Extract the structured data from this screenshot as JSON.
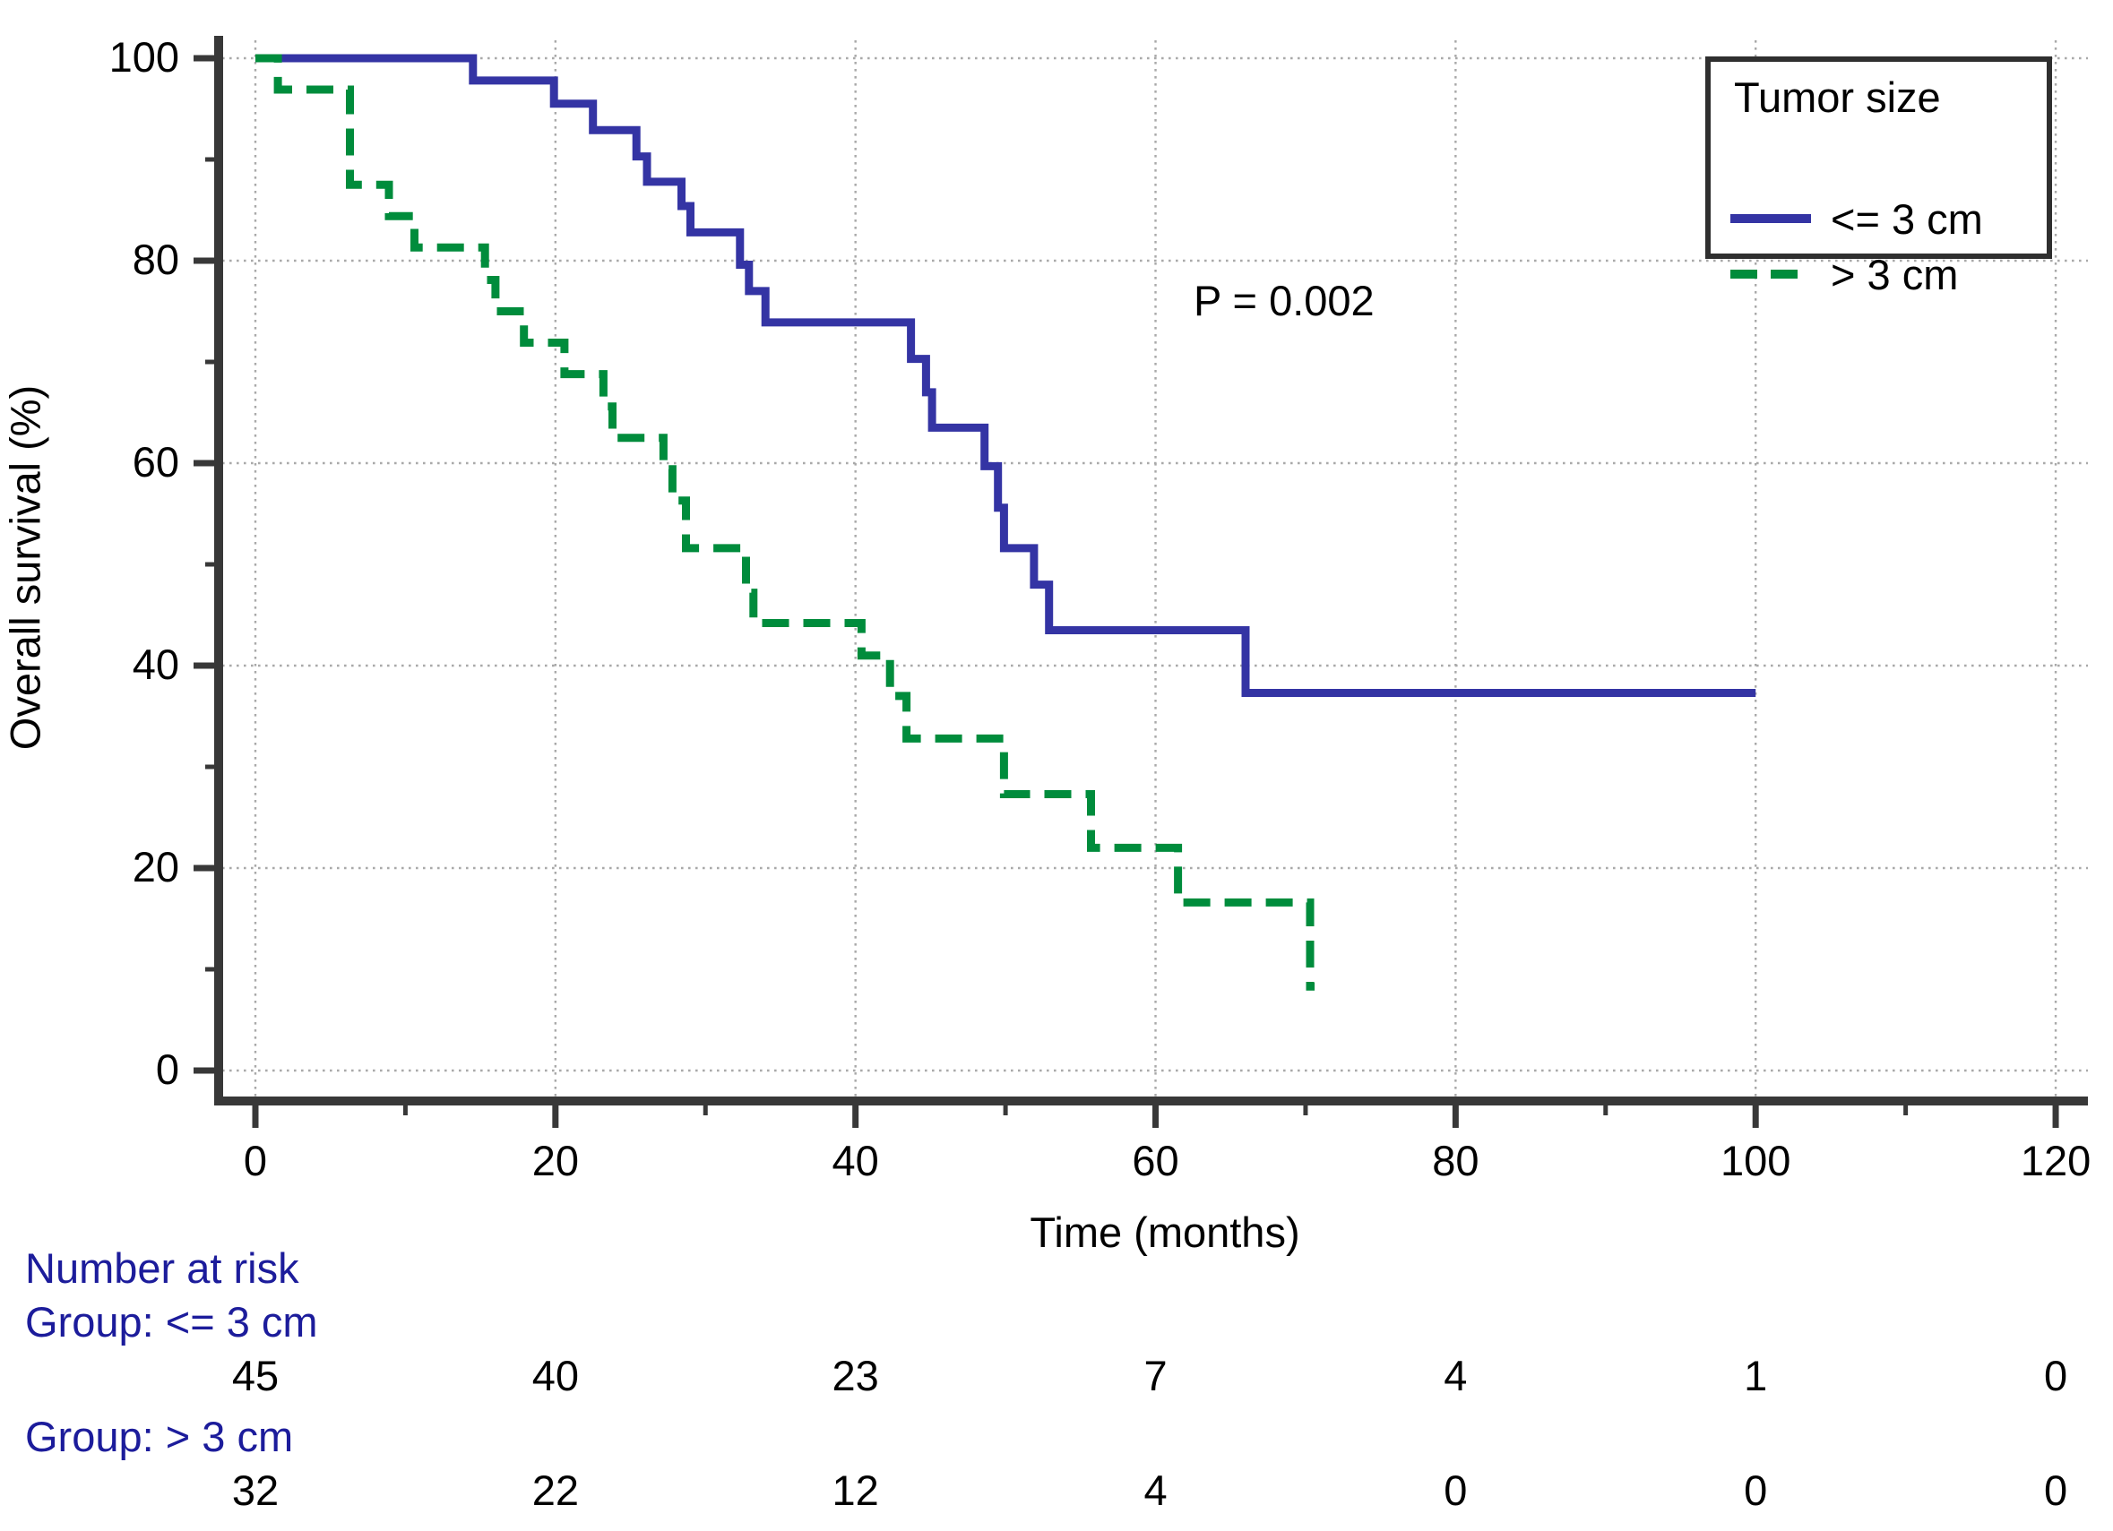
{
  "chart_data": {
    "type": "line",
    "subtype": "kaplan-meier-step",
    "title": "",
    "xlabel": "Time (months)",
    "ylabel": "Overall survival (%)",
    "xlim": [
      0,
      120
    ],
    "ylim": [
      0,
      100
    ],
    "x_ticks": [
      0,
      20,
      40,
      60,
      80,
      100,
      120
    ],
    "y_ticks": [
      0,
      20,
      40,
      60,
      80,
      100
    ],
    "minor_x_ticks": [
      10,
      30,
      50,
      70,
      90,
      110
    ],
    "minor_y_ticks": [
      10,
      30,
      50,
      70,
      90
    ],
    "grid": "dotted",
    "grid_color": "#a9a9a9",
    "axis_color": "#383838",
    "legend_position": "top-right",
    "legend_title": "Tumor size",
    "annotations": [
      {
        "text": "P = 0.002",
        "x": 63,
        "y": 76
      }
    ],
    "series": [
      {
        "name": "<= 3 cm",
        "color": "#3434a4",
        "style": "solid",
        "points": [
          [
            0,
            100
          ],
          [
            14.5,
            97.8
          ],
          [
            19.9,
            95.5
          ],
          [
            22.5,
            92.9
          ],
          [
            25.4,
            90.3
          ],
          [
            26.1,
            87.8
          ],
          [
            28.4,
            85.4
          ],
          [
            29.0,
            82.8
          ],
          [
            32.3,
            79.6
          ],
          [
            32.9,
            77.0
          ],
          [
            34.0,
            73.9
          ],
          [
            43.7,
            70.3
          ],
          [
            44.7,
            67.0
          ],
          [
            45.1,
            63.5
          ],
          [
            48.6,
            59.7
          ],
          [
            49.5,
            55.6
          ],
          [
            49.9,
            51.6
          ],
          [
            51.9,
            48.0
          ],
          [
            52.9,
            43.5
          ],
          [
            66.0,
            37.3
          ]
        ],
        "end_month": 100
      },
      {
        "name": "> 3 cm",
        "color": "#008c3c",
        "style": "dashed",
        "points": [
          [
            0,
            100
          ],
          [
            1.5,
            96.9
          ],
          [
            6.3,
            87.5
          ],
          [
            8.9,
            84.4
          ],
          [
            10.6,
            81.3
          ],
          [
            15.3,
            78.1
          ],
          [
            16.0,
            75.0
          ],
          [
            17.9,
            71.9
          ],
          [
            20.6,
            68.8
          ],
          [
            23.2,
            65.6
          ],
          [
            23.8,
            62.5
          ],
          [
            27.2,
            59.4
          ],
          [
            27.8,
            56.3
          ],
          [
            28.7,
            51.6
          ],
          [
            32.7,
            47.2
          ],
          [
            33.2,
            44.2
          ],
          [
            40.4,
            41.0
          ],
          [
            42.3,
            37.0
          ],
          [
            43.4,
            32.8
          ],
          [
            49.9,
            27.3
          ],
          [
            55.7,
            22.0
          ],
          [
            61.5,
            16.6
          ],
          [
            70.3,
            8.3
          ]
        ],
        "end_month": 70.6
      }
    ]
  },
  "risk_table": {
    "header": "Number at risk",
    "times": [
      0,
      20,
      40,
      60,
      80,
      100,
      120
    ],
    "groups": [
      {
        "label": "Group: <= 3 cm",
        "counts": [
          45,
          40,
          23,
          7,
          4,
          1,
          0
        ]
      },
      {
        "label": "Group: > 3 cm",
        "counts": [
          32,
          22,
          12,
          4,
          0,
          0,
          0
        ]
      }
    ],
    "label_color": "#1c1c9b"
  }
}
